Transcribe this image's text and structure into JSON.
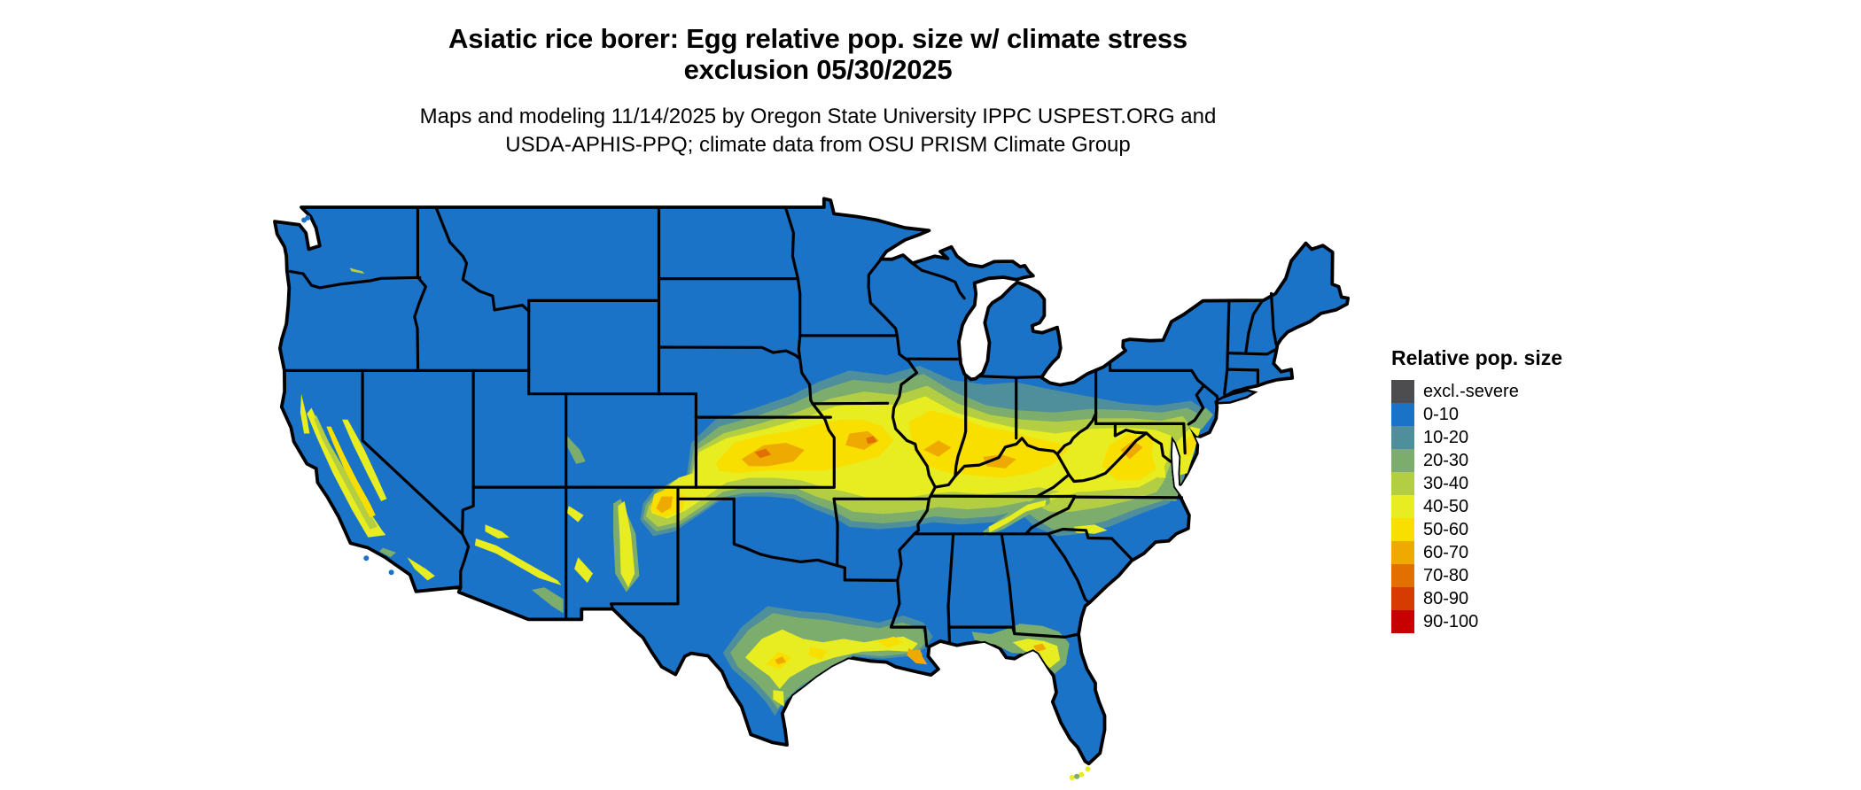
{
  "figure": {
    "title_line1": "Asiatic rice borer: Egg relative pop. size w/ climate stress",
    "title_line2": "exclusion 05/30/2025",
    "subtitle_line1": "Maps and modeling 11/14/2025 by Oregon State University IPPC USPEST.ORG and",
    "subtitle_line2": "USDA-APHIS-PPQ; climate data from OSU PRISM Climate Group"
  },
  "legend": {
    "title": "Relative pop. size",
    "items": [
      {
        "label": "excl.-severe",
        "color": "#4D4D4F"
      },
      {
        "label": "0-10",
        "color": "#1B73C8"
      },
      {
        "label": "10-20",
        "color": "#4E8F9B"
      },
      {
        "label": "20-30",
        "color": "#7CAD6C"
      },
      {
        "label": "30-40",
        "color": "#B3CE43"
      },
      {
        "label": "40-50",
        "color": "#E7ED21"
      },
      {
        "label": "50-60",
        "color": "#F9DF00"
      },
      {
        "label": "60-70",
        "color": "#EFAA02"
      },
      {
        "label": "70-80",
        "color": "#E17000"
      },
      {
        "label": "80-90",
        "color": "#D63B01"
      },
      {
        "label": "90-100",
        "color": "#C70000"
      }
    ]
  },
  "map": {
    "region": "Contiguous United States",
    "base_value_class": "0-10",
    "background_color": "#FFFFFF",
    "state_border_color": "#000000"
  },
  "chart_data": {
    "type": "heatmap",
    "title": "Asiatic rice borer: Egg relative pop. size w/ climate stress exclusion 05/30/2025",
    "legend_title": "Relative pop. size",
    "legend_position": "right",
    "classes": [
      "excl.-severe",
      "0-10",
      "10-20",
      "20-30",
      "30-40",
      "40-50",
      "50-60",
      "60-70",
      "70-80",
      "80-90",
      "90-100"
    ],
    "class_colors": [
      "#4D4D4F",
      "#1B73C8",
      "#4E8F9B",
      "#7CAD6C",
      "#B3CE43",
      "#E7ED21",
      "#F9DF00",
      "#EFAA02",
      "#E17000",
      "#D63B01",
      "#C70000"
    ],
    "dominant_class": "0-10",
    "high_value_regions": [
      "Central band (values 20-80) from SE Colorado / NE New Mexico across Kansas, Missouri, southern Iowa, Illinois, Indiana, southern Ohio, Kentucky, West Virginia and Virginia to the Delmarva coast",
      "California Central Valley and foothills (30-60)",
      "Arizona Mogollon Rim and central New Mexico mountain corridors (40-50)",
      "Gulf Coast band across central/coastal Texas, Louisiana and coastal Mississippi (20-70)",
      "North Florida and south Georgia (20-60)",
      "East Tennessee valleys, Carolina piedmont and mid-Atlantic coastal plain streaks (30-50)",
      "Small yellow specks on the Florida Keys"
    ],
    "low_value_regions": "Northern tier states, Great Lakes states, New England, interior Southeast, south Texas and most mountain West are 0-10 (blue)"
  }
}
